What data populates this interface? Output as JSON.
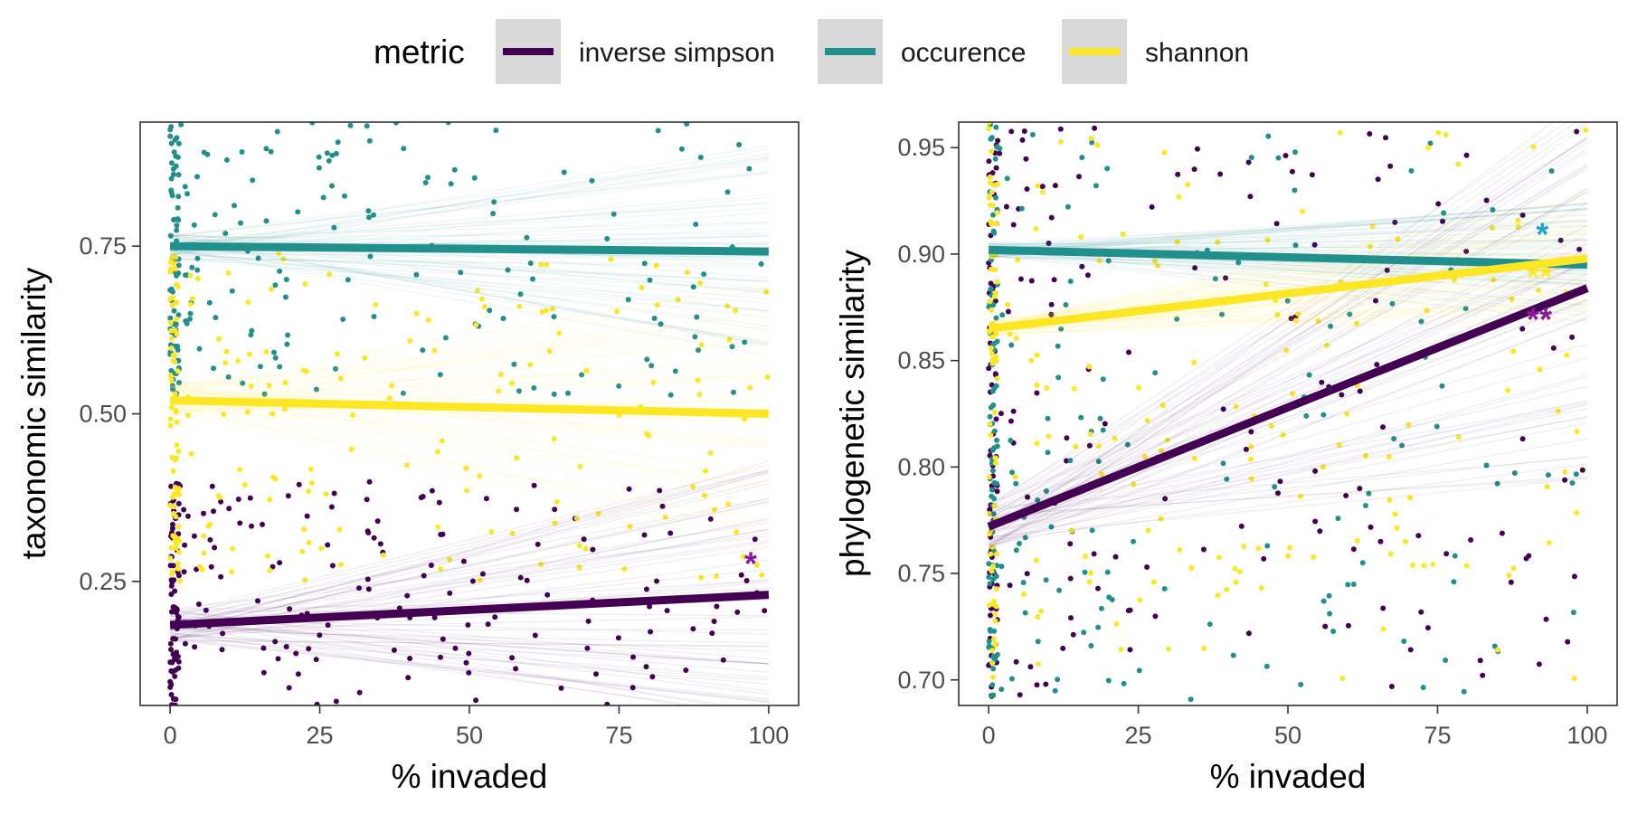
{
  "legend": {
    "title": "metric",
    "items": [
      {
        "label": "inverse simpson",
        "color": "#440154"
      },
      {
        "label": "occurence",
        "color": "#21908C"
      },
      {
        "label": "shannon",
        "color": "#FDE725"
      }
    ]
  },
  "chart_data": [
    {
      "type": "scatter",
      "xlabel": "% invaded",
      "ylabel": "taxonomic similarity",
      "xlim": [
        -5,
        105
      ],
      "ylim": [
        0.065,
        0.935
      ],
      "xticks": [
        0,
        25,
        50,
        75,
        100
      ],
      "yticks": [
        0.25,
        0.5,
        0.75
      ],
      "ytick_labels": [
        "0.25",
        "0.50",
        "0.75"
      ],
      "grid": false,
      "series": [
        {
          "name": "inverse simpson",
          "color": "#440154",
          "fit": {
            "x": [
              0,
              100
            ],
            "y": [
              0.185,
              0.23
            ]
          },
          "ribbon_width": 0.2,
          "point_y_range": [
            0.065,
            0.4
          ]
        },
        {
          "name": "occurence",
          "color": "#21908C",
          "fit": {
            "x": [
              0,
              100
            ],
            "y": [
              0.75,
              0.742
            ]
          },
          "ribbon_width": 0.16,
          "point_y_range": [
            0.52,
            0.935
          ]
        },
        {
          "name": "shannon",
          "color": "#FDE725",
          "fit": {
            "x": [
              0,
              100
            ],
            "y": [
              0.52,
              0.5
            ]
          },
          "ribbon_width": 0.2,
          "point_y_range": [
            0.25,
            0.74
          ]
        }
      ],
      "annotations": [
        {
          "text": "*",
          "x": 97,
          "y": 0.26,
          "color": "#8B1A9B"
        }
      ]
    },
    {
      "type": "scatter",
      "xlabel": "% invaded",
      "ylabel": "phylogenetic similarity",
      "xlim": [
        -5,
        105
      ],
      "ylim": [
        0.688,
        0.962
      ],
      "xticks": [
        0,
        25,
        50,
        75,
        100
      ],
      "yticks": [
        0.7,
        0.75,
        0.8,
        0.85,
        0.9,
        0.95
      ],
      "ytick_labels": [
        "0.70",
        "0.75",
        "0.80",
        "0.85",
        "0.90",
        "0.95"
      ],
      "grid": false,
      "series": [
        {
          "name": "inverse simpson",
          "color": "#440154",
          "fit": {
            "x": [
              0,
              100
            ],
            "y": [
              0.772,
              0.884
            ]
          },
          "ribbon_width": 0.09,
          "point_y_range": [
            0.69,
            0.962
          ]
        },
        {
          "name": "occurence",
          "color": "#21908C",
          "fit": {
            "x": [
              0,
              100
            ],
            "y": [
              0.902,
              0.895
            ]
          },
          "ribbon_width": 0.03,
          "point_y_range": [
            0.69,
            0.962
          ]
        },
        {
          "name": "shannon",
          "color": "#FDE725",
          "fit": {
            "x": [
              0,
              100
            ],
            "y": [
              0.865,
              0.898
            ]
          },
          "ribbon_width": 0.03,
          "point_y_range": [
            0.7,
            0.962
          ]
        }
      ],
      "annotations": [
        {
          "text": "*",
          "x": 92.5,
          "y": 0.904,
          "color": "#1FA3D9"
        },
        {
          "text": "**",
          "x": 92,
          "y": 0.884,
          "color": "#FDE725"
        },
        {
          "text": "**",
          "x": 92,
          "y": 0.864,
          "color": "#8B1A9B"
        }
      ]
    }
  ]
}
